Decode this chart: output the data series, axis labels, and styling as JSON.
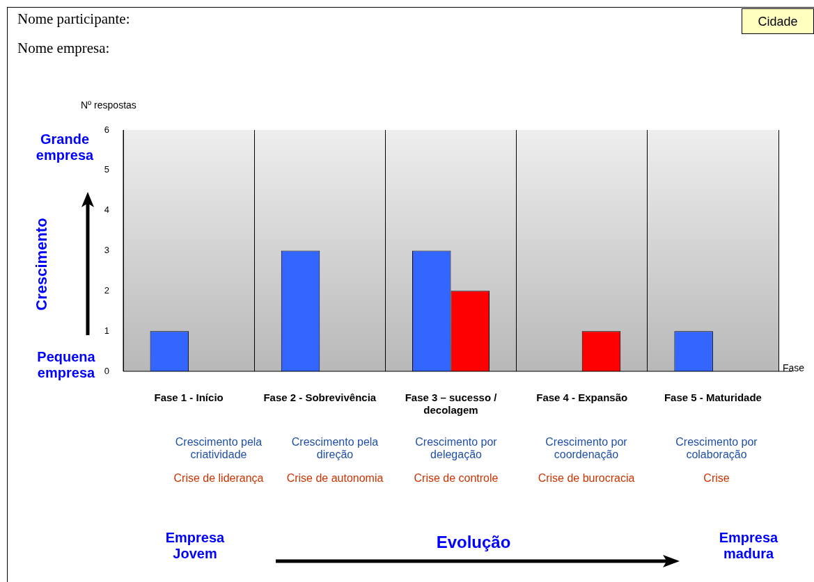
{
  "chart_data": {
    "type": "bar",
    "ylabel": "Nº respostas",
    "xlabel": "Fase",
    "categories": [
      "Fase 1 - Início",
      "Fase 2 - Sobrevivência",
      "Fase 3 – sucesso / decolagem",
      "Fase 4 - Expansão",
      "Fase 5 - Maturidade"
    ],
    "series": [
      {
        "color": "#3366ff",
        "values": [
          1,
          3,
          3,
          null,
          1
        ]
      },
      {
        "color": "#ff0000",
        "values": [
          null,
          null,
          2,
          1,
          null
        ]
      }
    ],
    "ylim": [
      0,
      6
    ],
    "yticks": [
      0,
      1,
      2,
      3,
      4,
      5,
      6
    ],
    "grid": "x",
    "legend": false,
    "annotations": [
      "Nome participante:",
      "Nome empresa:",
      "Cidade",
      "Grande empresa",
      "Crescimento",
      "Pequena empresa",
      "Crescimento pela criatividade",
      "Crise de liderança",
      "Crescimento pela direção",
      "Crise de autonomia",
      "Crescimento por delegação",
      "Crise de controle",
      "Crescimento por coordenação",
      "Crise de burocracia",
      "Crescimento por colaboração",
      "Crise",
      "Empresa Jovem",
      "Evolução",
      "Empresa madura"
    ]
  }
}
